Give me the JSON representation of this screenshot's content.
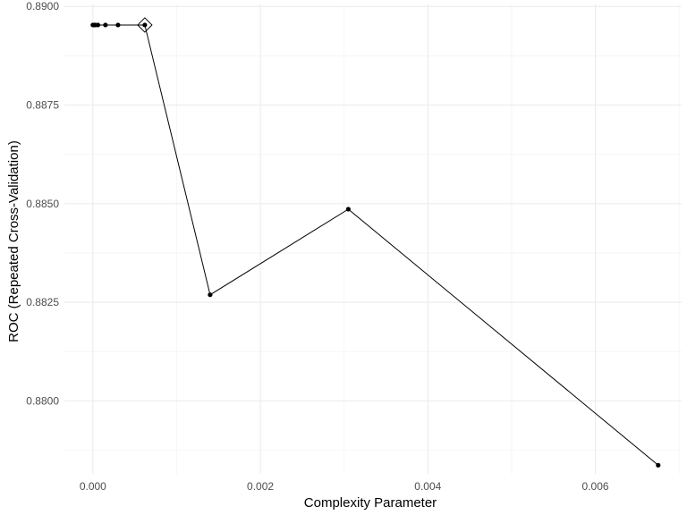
{
  "chart_data": {
    "type": "line",
    "title": "",
    "xlabel": "Complexity Parameter",
    "ylabel": "ROC (Repeated Cross-Validation)",
    "xlim": [
      -0.00034,
      0.00703
    ],
    "ylim": [
      0.87815,
      0.89005
    ],
    "x_ticks": [
      0.0,
      0.002,
      0.004,
      0.006
    ],
    "x_tick_labels": [
      "0.000",
      "0.002",
      "0.004",
      "0.006"
    ],
    "y_ticks": [
      0.88,
      0.8825,
      0.885,
      0.8875,
      0.89
    ],
    "y_tick_labels": [
      "0.8800",
      "0.8825",
      "0.8850",
      "0.8875",
      "0.8900"
    ],
    "grid": true,
    "series": [
      {
        "points": [
          {
            "x": 0.0,
            "y": 0.88953
          },
          {
            "x": 1.5e-05,
            "y": 0.88953
          },
          {
            "x": 3e-05,
            "y": 0.88953
          },
          {
            "x": 6e-05,
            "y": 0.88953
          },
          {
            "x": 0.00015,
            "y": 0.88953
          },
          {
            "x": 0.0003,
            "y": 0.88953
          },
          {
            "x": 0.00062,
            "y": 0.88953
          },
          {
            "x": 0.0014,
            "y": 0.88269
          },
          {
            "x": 0.00305,
            "y": 0.88486
          },
          {
            "x": 0.00675,
            "y": 0.87837
          }
        ]
      }
    ],
    "best_point": {
      "x": 0.00062,
      "y": 0.88953
    },
    "colors": {
      "line": "#000000",
      "point": "#000000",
      "grid": "#ebebeb",
      "tick_text": "#4d4d4d",
      "background": "#ffffff"
    }
  }
}
